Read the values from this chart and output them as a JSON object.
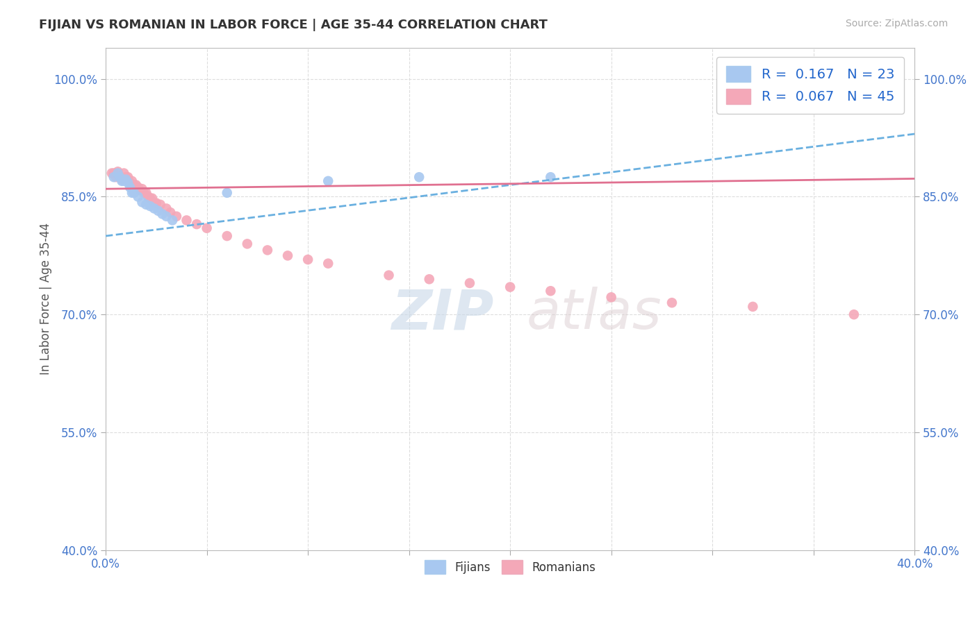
{
  "title": "FIJIAN VS ROMANIAN IN LABOR FORCE | AGE 35-44 CORRELATION CHART",
  "source_text": "Source: ZipAtlas.com",
  "ylabel": "In Labor Force | Age 35-44",
  "xlim": [
    0.0,
    0.4
  ],
  "ylim": [
    0.4,
    1.04
  ],
  "fijian_R": 0.167,
  "fijian_N": 23,
  "romanian_R": 0.067,
  "romanian_N": 45,
  "fijian_color": "#a8c8f0",
  "romanian_color": "#f4a8b8",
  "fijian_line_color": "#6ab0e0",
  "romanian_line_color": "#e07090",
  "fijian_x": [
    0.004,
    0.006,
    0.007,
    0.008,
    0.009,
    0.01,
    0.011,
    0.012,
    0.013,
    0.014,
    0.016,
    0.018,
    0.02,
    0.022,
    0.024,
    0.026,
    0.028,
    0.03,
    0.033,
    0.06,
    0.11,
    0.155,
    0.22
  ],
  "fijian_y": [
    0.875,
    0.88,
    0.875,
    0.87,
    0.87,
    0.872,
    0.868,
    0.862,
    0.855,
    0.855,
    0.85,
    0.843,
    0.84,
    0.838,
    0.835,
    0.832,
    0.828,
    0.825,
    0.82,
    0.855,
    0.87,
    0.875,
    0.875
  ],
  "romanian_x": [
    0.003,
    0.004,
    0.005,
    0.006,
    0.007,
    0.008,
    0.009,
    0.01,
    0.011,
    0.012,
    0.013,
    0.014,
    0.015,
    0.016,
    0.017,
    0.018,
    0.019,
    0.02,
    0.021,
    0.022,
    0.023,
    0.024,
    0.025,
    0.027,
    0.03,
    0.032,
    0.035,
    0.04,
    0.045,
    0.05,
    0.06,
    0.07,
    0.08,
    0.09,
    0.1,
    0.11,
    0.14,
    0.16,
    0.18,
    0.2,
    0.22,
    0.25,
    0.28,
    0.32,
    0.37
  ],
  "romanian_y": [
    0.88,
    0.88,
    0.875,
    0.882,
    0.875,
    0.872,
    0.88,
    0.875,
    0.875,
    0.868,
    0.87,
    0.865,
    0.865,
    0.862,
    0.858,
    0.86,
    0.855,
    0.855,
    0.85,
    0.848,
    0.848,
    0.842,
    0.842,
    0.84,
    0.835,
    0.83,
    0.825,
    0.82,
    0.815,
    0.81,
    0.8,
    0.79,
    0.782,
    0.775,
    0.77,
    0.765,
    0.75,
    0.745,
    0.74,
    0.735,
    0.73,
    0.722,
    0.715,
    0.71,
    0.7
  ],
  "yticks": [
    0.4,
    0.55,
    0.7,
    0.85,
    1.0
  ],
  "ytick_labels": [
    "40.0%",
    "55.0%",
    "70.0%",
    "85.0%",
    "100.0%"
  ],
  "xticks": [
    0.0,
    0.05,
    0.1,
    0.15,
    0.2,
    0.25,
    0.3,
    0.35,
    0.4
  ],
  "xtick_labels": [
    "0.0%",
    "",
    "",
    "",
    "",
    "",
    "",
    "",
    "40.0%"
  ],
  "watermark_zip": "ZIP",
  "watermark_atlas": "atlas",
  "background_color": "#ffffff",
  "grid_color": "#dddddd"
}
